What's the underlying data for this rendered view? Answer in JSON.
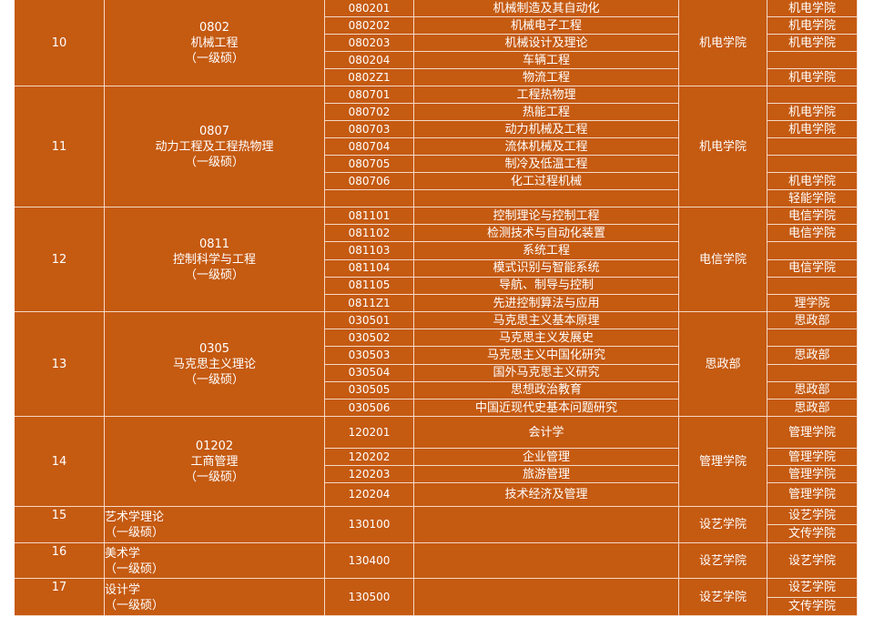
{
  "colors": {
    "background": "#c55a11",
    "text": "#ffffff",
    "grid": "#f4d9c6"
  },
  "groups": [
    {
      "no": "10",
      "code": "0802",
      "title": "机械工程",
      "level": "（一级硕）",
      "dept": "机电学院",
      "rows": [
        {
          "code": "080201",
          "name": "机械制造及其自动化",
          "units": [
            "机电学院"
          ]
        },
        {
          "code": "080202",
          "name": "机械电子工程",
          "units": [
            "机电学院"
          ]
        },
        {
          "code": "080203",
          "name": "机械设计及理论",
          "units": [
            "机电学院"
          ]
        },
        {
          "code": "080204",
          "name": "车辆工程",
          "units": [
            ""
          ]
        },
        {
          "code": "0802Z1",
          "name": "物流工程",
          "units": [
            "机电学院"
          ]
        }
      ]
    },
    {
      "no": "11",
      "code": "0807",
      "title": "动力工程及工程热物理",
      "level": "（一级硕）",
      "dept": "机电学院",
      "rows": [
        {
          "code": "080701",
          "name": "工程热物理",
          "units": [
            ""
          ]
        },
        {
          "code": "080702",
          "name": "热能工程",
          "units": [
            "机电学院"
          ]
        },
        {
          "code": "080703",
          "name": "动力机械及工程",
          "units": [
            "机电学院"
          ]
        },
        {
          "code": "080704",
          "name": "流体机械及工程",
          "units": [
            ""
          ]
        },
        {
          "code": "080705",
          "name": "制冷及低温工程",
          "units": [
            ""
          ]
        },
        {
          "code": "080706",
          "name": "化工过程机械",
          "units": [
            "机电学院"
          ]
        },
        {
          "code": "",
          "name": "",
          "units": [
            "轻能学院"
          ]
        }
      ]
    },
    {
      "no": "12",
      "code": "0811",
      "title": "控制科学与工程",
      "level": "（一级硕）",
      "dept": "电信学院",
      "rows": [
        {
          "code": "081101",
          "name": "控制理论与控制工程",
          "units": [
            "电信学院"
          ]
        },
        {
          "code": "081102",
          "name": "检测技术与自动化装置",
          "units": [
            "电信学院"
          ]
        },
        {
          "code": "081103",
          "name": "系统工程",
          "units": [
            ""
          ]
        },
        {
          "code": "081104",
          "name": "模式识别与智能系统",
          "units": [
            "电信学院"
          ]
        },
        {
          "code": "081105",
          "name": "导航、制导与控制",
          "units": [
            ""
          ]
        },
        {
          "code": "0811Z1",
          "name": "先进控制算法与应用",
          "units": [
            "理学院"
          ]
        }
      ]
    },
    {
      "no": "13",
      "code": "0305",
      "title": "马克思主义理论",
      "level": "（一级硕）",
      "dept": "思政部",
      "rows": [
        {
          "code": "030501",
          "name": "马克思主义基本原理",
          "units": [
            "思政部"
          ]
        },
        {
          "code": "030502",
          "name": "马克思主义发展史",
          "units": [
            ""
          ]
        },
        {
          "code": "030503",
          "name": "马克思主义中国化研究",
          "units": [
            "思政部"
          ]
        },
        {
          "code": "030504",
          "name": "国外马克思主义研究",
          "units": [
            ""
          ]
        },
        {
          "code": "030505",
          "name": "思想政治教育",
          "units": [
            "思政部"
          ]
        },
        {
          "code": "030506",
          "name": "中国近现代史基本问题研究",
          "units": [
            "思政部"
          ]
        }
      ]
    },
    {
      "no": "14",
      "code": "01202",
      "title": "工商管理",
      "level": "（一级硕）",
      "dept": "管理学院",
      "rows": [
        {
          "code": "120201",
          "name": "会计学",
          "units": [
            "管理学院"
          ]
        },
        {
          "code": "120202",
          "name": "企业管理",
          "units": [
            "管理学院"
          ]
        },
        {
          "code": "120203",
          "name": "旅游管理",
          "units": [
            "管理学院"
          ]
        },
        {
          "code": "120204",
          "name": "技术经济及管理",
          "units": [
            "管理学院"
          ]
        }
      ]
    },
    {
      "no": "15",
      "code": "",
      "title": "艺术学理论",
      "level": "（一级硕）",
      "dept": "设艺学院",
      "rows": [
        {
          "code": "130100",
          "name": "",
          "units": [
            "设艺学院",
            "文传学院"
          ]
        }
      ]
    },
    {
      "no": "16",
      "code": "",
      "title": "美术学",
      "level": "（一级硕）",
      "dept": "设艺学院",
      "rows": [
        {
          "code": "130400",
          "name": "",
          "units": [
            "设艺学院"
          ]
        }
      ]
    },
    {
      "no": "17",
      "code": "",
      "title": "设计学",
      "level": "（一级硕）",
      "dept": "设艺学院",
      "rows": [
        {
          "code": "130500",
          "name": "",
          "units": [
            "设艺学院",
            "文传学院"
          ]
        }
      ]
    }
  ]
}
